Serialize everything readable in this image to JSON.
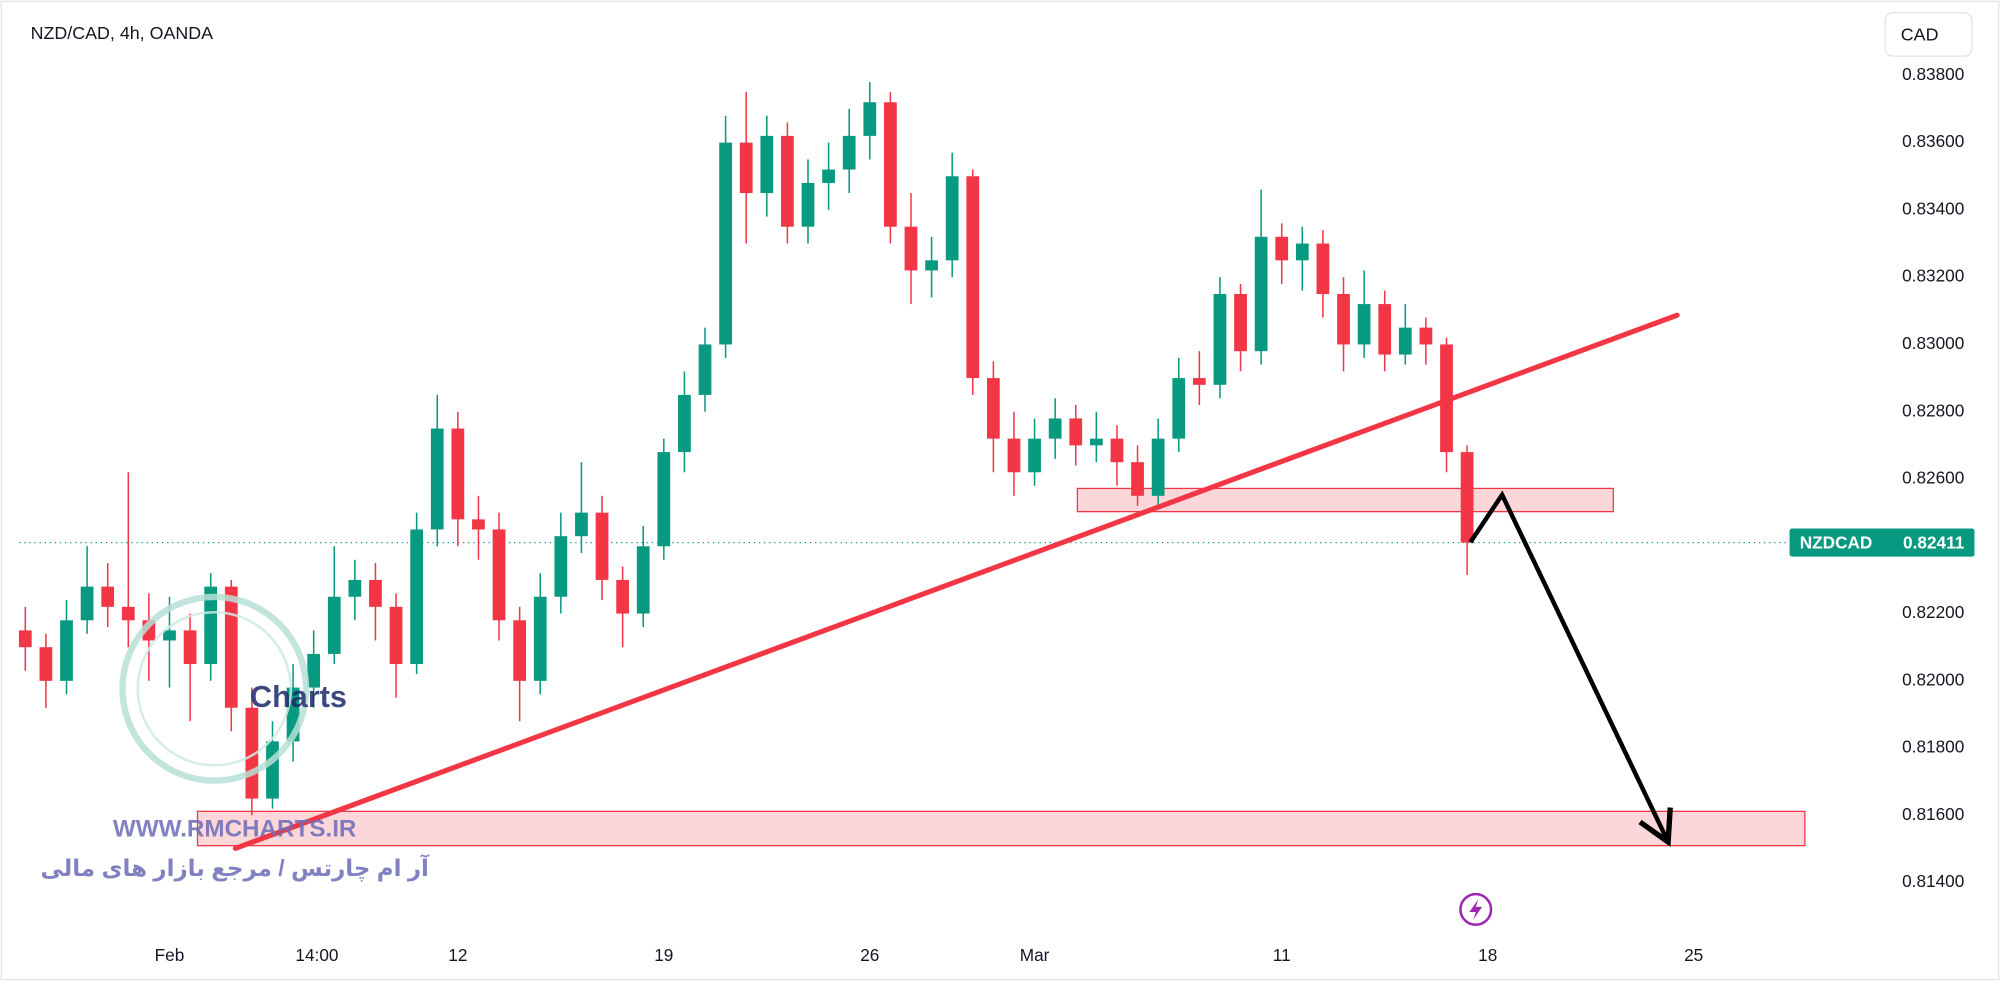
{
  "chart_data": {
    "type": "candlestick",
    "title": "NZD/CAD, 4h, OANDA",
    "currency": "CAD",
    "up_color": "#089981",
    "down_color": "#f23645",
    "x": [
      -3.5,
      -3,
      -2.5,
      -2,
      -1.5,
      -1,
      -0.5,
      0,
      0.5,
      1,
      1.5,
      2,
      2.5,
      3,
      3.5,
      4,
      4.5,
      5,
      5.5,
      6,
      6.5,
      7,
      7.5,
      8,
      8.5,
      9,
      9.5,
      10,
      10.5,
      11,
      11.5,
      12,
      12.5,
      13,
      13.5,
      14,
      14.5,
      15,
      15.5,
      16,
      16.5,
      17,
      17.5,
      18,
      18.5,
      19,
      19.5,
      20,
      20.5,
      21,
      21.5,
      22,
      22.5,
      23,
      23.5,
      24,
      24.5,
      25,
      25.5,
      26,
      26.5,
      27,
      27.5,
      28,
      28.5,
      29,
      29.5,
      30,
      30.5,
      31,
      31.5
    ],
    "ohlc": [
      [
        0.8215,
        0.8222,
        0.8203,
        0.821
      ],
      [
        0.821,
        0.8214,
        0.8192,
        0.82
      ],
      [
        0.82,
        0.8224,
        0.8196,
        0.8218
      ],
      [
        0.8218,
        0.824,
        0.8214,
        0.8228
      ],
      [
        0.8228,
        0.8235,
        0.8216,
        0.8222
      ],
      [
        0.8222,
        0.8262,
        0.821,
        0.8218
      ],
      [
        0.8218,
        0.8226,
        0.82,
        0.8212
      ],
      [
        0.8212,
        0.8225,
        0.8198,
        0.8215
      ],
      [
        0.8215,
        0.822,
        0.8188,
        0.8205
      ],
      [
        0.8205,
        0.8232,
        0.82,
        0.8228
      ],
      [
        0.8228,
        0.823,
        0.8185,
        0.8192
      ],
      [
        0.8192,
        0.8198,
        0.816,
        0.8165
      ],
      [
        0.8165,
        0.8188,
        0.8162,
        0.8182
      ],
      [
        0.8182,
        0.8205,
        0.8176,
        0.8198
      ],
      [
        0.8198,
        0.8215,
        0.8192,
        0.8208
      ],
      [
        0.8208,
        0.824,
        0.8205,
        0.8225
      ],
      [
        0.8225,
        0.8236,
        0.8218,
        0.823
      ],
      [
        0.823,
        0.8235,
        0.8212,
        0.8222
      ],
      [
        0.8222,
        0.8226,
        0.8195,
        0.8205
      ],
      [
        0.8205,
        0.825,
        0.8202,
        0.8245
      ],
      [
        0.8245,
        0.8285,
        0.824,
        0.8275
      ],
      [
        0.8275,
        0.828,
        0.824,
        0.8248
      ],
      [
        0.8248,
        0.8255,
        0.8236,
        0.8245
      ],
      [
        0.8245,
        0.825,
        0.8212,
        0.8218
      ],
      [
        0.8218,
        0.8222,
        0.8188,
        0.82
      ],
      [
        0.82,
        0.8232,
        0.8196,
        0.8225
      ],
      [
        0.8225,
        0.825,
        0.822,
        0.8243
      ],
      [
        0.8243,
        0.8265,
        0.8238,
        0.825
      ],
      [
        0.825,
        0.8255,
        0.8224,
        0.823
      ],
      [
        0.823,
        0.8234,
        0.821,
        0.822
      ],
      [
        0.822,
        0.8246,
        0.8216,
        0.824
      ],
      [
        0.824,
        0.8272,
        0.8236,
        0.8268
      ],
      [
        0.8268,
        0.8292,
        0.8262,
        0.8285
      ],
      [
        0.8285,
        0.8305,
        0.828,
        0.83
      ],
      [
        0.83,
        0.8368,
        0.8296,
        0.836
      ],
      [
        0.836,
        0.8375,
        0.833,
        0.8345
      ],
      [
        0.8345,
        0.8368,
        0.8338,
        0.8362
      ],
      [
        0.8362,
        0.8366,
        0.833,
        0.8335
      ],
      [
        0.8335,
        0.8355,
        0.833,
        0.8348
      ],
      [
        0.8348,
        0.836,
        0.834,
        0.8352
      ],
      [
        0.8352,
        0.837,
        0.8345,
        0.8362
      ],
      [
        0.8362,
        0.8378,
        0.8355,
        0.8372
      ],
      [
        0.8372,
        0.8375,
        0.833,
        0.8335
      ],
      [
        0.8335,
        0.8345,
        0.8312,
        0.8322
      ],
      [
        0.8322,
        0.8332,
        0.8314,
        0.8325
      ],
      [
        0.8325,
        0.8357,
        0.832,
        0.835
      ],
      [
        0.835,
        0.8352,
        0.8285,
        0.829
      ],
      [
        0.829,
        0.8295,
        0.8262,
        0.8272
      ],
      [
        0.8272,
        0.828,
        0.8255,
        0.8262
      ],
      [
        0.8262,
        0.8278,
        0.8258,
        0.8272
      ],
      [
        0.8272,
        0.8284,
        0.8266,
        0.8278
      ],
      [
        0.8278,
        0.8282,
        0.8264,
        0.827
      ],
      [
        0.827,
        0.828,
        0.8265,
        0.8272
      ],
      [
        0.8272,
        0.8276,
        0.8258,
        0.8265
      ],
      [
        0.8265,
        0.827,
        0.8252,
        0.8255
      ],
      [
        0.8255,
        0.8278,
        0.8252,
        0.8272
      ],
      [
        0.8272,
        0.8296,
        0.8268,
        0.829
      ],
      [
        0.829,
        0.8298,
        0.8282,
        0.8288
      ],
      [
        0.8288,
        0.832,
        0.8284,
        0.8315
      ],
      [
        0.8315,
        0.8318,
        0.8292,
        0.8298
      ],
      [
        0.8298,
        0.8346,
        0.8294,
        0.8332
      ],
      [
        0.8332,
        0.8336,
        0.8318,
        0.8325
      ],
      [
        0.8325,
        0.8335,
        0.8316,
        0.833
      ],
      [
        0.833,
        0.8334,
        0.8308,
        0.8315
      ],
      [
        0.8315,
        0.832,
        0.8292,
        0.83
      ],
      [
        0.83,
        0.8322,
        0.8296,
        0.8312
      ],
      [
        0.8312,
        0.8316,
        0.8292,
        0.8297
      ],
      [
        0.8297,
        0.8312,
        0.8294,
        0.8305
      ],
      [
        0.8305,
        0.8308,
        0.8294,
        0.83
      ],
      [
        0.83,
        0.8302,
        0.8262,
        0.8268
      ],
      [
        0.8268,
        0.827,
        0.82315,
        0.82411
      ]
    ],
    "xlim": [
      -3.65,
      41.34
    ],
    "ylim": [
      0.81237,
      0.84005
    ],
    "xticks": [
      {
        "value": 0,
        "label": "Feb"
      },
      {
        "value": 3.58,
        "label": "14:00"
      },
      {
        "value": 7,
        "label": "12"
      },
      {
        "value": 12,
        "label": "19"
      },
      {
        "value": 17,
        "label": "26"
      },
      {
        "value": 21,
        "label": "Mar"
      },
      {
        "value": 27,
        "label": "11"
      },
      {
        "value": 32,
        "label": "18"
      },
      {
        "value": 37,
        "label": "25"
      }
    ],
    "yticks": [
      {
        "value": 0.814,
        "label": "0.81400"
      },
      {
        "value": 0.816,
        "label": "0.81600"
      },
      {
        "value": 0.818,
        "label": "0.81800"
      },
      {
        "value": 0.82,
        "label": "0.82000"
      },
      {
        "value": 0.822,
        "label": "0.82200"
      },
      {
        "value": 0.826,
        "label": "0.82600"
      },
      {
        "value": 0.828,
        "label": "0.82800"
      },
      {
        "value": 0.83,
        "label": "0.83000"
      },
      {
        "value": 0.832,
        "label": "0.83200"
      },
      {
        "value": 0.834,
        "label": "0.83400"
      },
      {
        "value": 0.836,
        "label": "0.83600"
      },
      {
        "value": 0.838,
        "label": "0.83800"
      }
    ],
    "last_price": {
      "symbol": "NZDCAD",
      "value": 0.82411,
      "color": "#089981"
    },
    "trendline": {
      "x": [
        1.6,
        36.6
      ],
      "y": [
        0.81502,
        0.83087
      ],
      "color": "#f23645"
    },
    "zones": [
      {
        "x": [
          22.04,
          35.05
        ],
        "y": [
          0.82503,
          0.82572
        ],
        "color": "#f23645"
      },
      {
        "x": [
          0.68,
          39.7
        ],
        "y": [
          0.8151,
          0.81612
        ],
        "color": "#f23645"
      }
    ],
    "arrow": {
      "x": [
        31.58,
        32.35,
        36.38
      ],
      "y": [
        0.82412,
        0.82553,
        0.81521
      ],
      "color": "#000000"
    },
    "watermark": {
      "logo": "Charts",
      "site": "WWW.RMCHARTS.IR",
      "tagline": "آر ام چارتس / مرجع بازار های مالی"
    }
  }
}
